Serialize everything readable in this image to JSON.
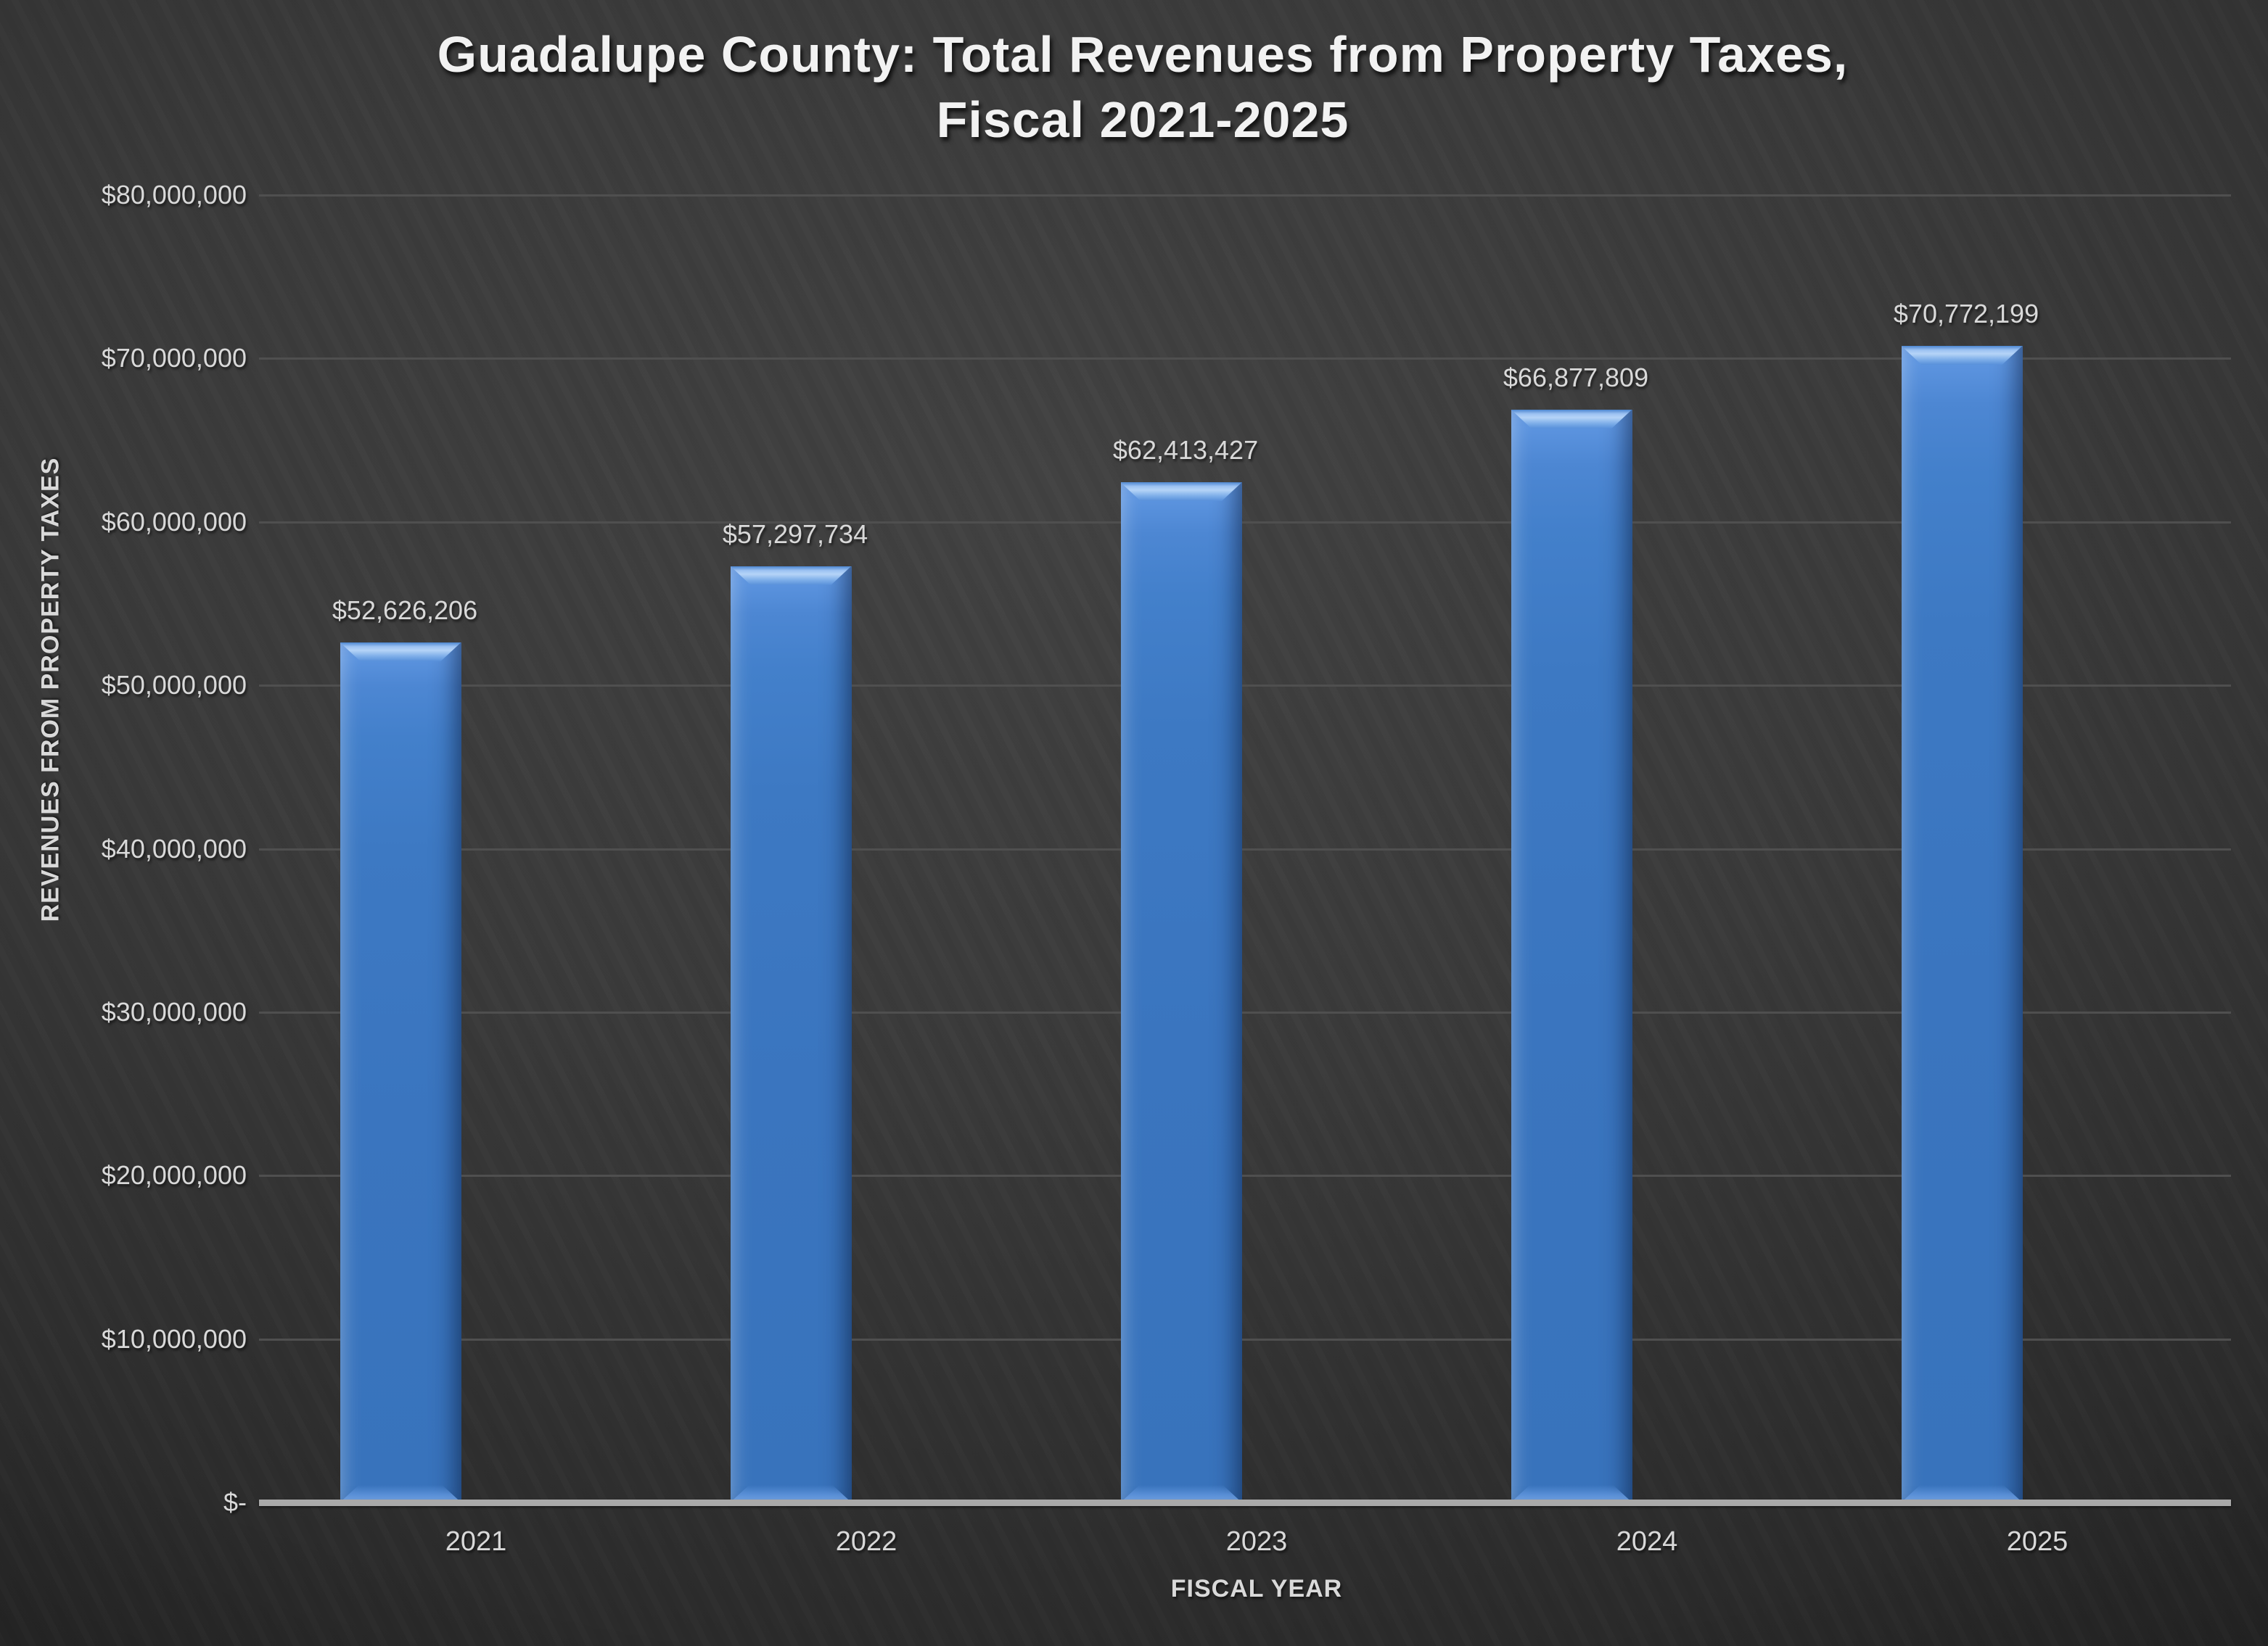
{
  "title": {
    "line1": "Guadalupe County: Total Revenues from Property Taxes,",
    "line2": "Fiscal 2021-2025"
  },
  "chart_data": {
    "type": "bar",
    "title": "Guadalupe County: Total Revenues from Property Taxes, Fiscal 2021-2025",
    "categories": [
      "2021",
      "2022",
      "2023",
      "2024",
      "2025"
    ],
    "values": [
      52626206,
      57297734,
      62413427,
      66877809,
      70772199
    ],
    "data_labels": [
      "$52,626,206",
      "$57,297,734",
      "$62,413,427",
      "$66,877,809",
      "$70,772,199"
    ],
    "xlabel": "FISCAL YEAR",
    "ylabel": "REVENUES FROM PROPERTY TAXES",
    "ylim": [
      0,
      80000000
    ],
    "ytick_interval": 10000000,
    "ytick_labels": [
      "$-",
      "$10,000,000",
      "$20,000,000",
      "$30,000,000",
      "$40,000,000",
      "$50,000,000",
      "$60,000,000",
      "$70,000,000",
      "$80,000,000"
    ],
    "grid": true,
    "legend": false
  },
  "colors": {
    "background": "#333333",
    "bar": "#3b76c0",
    "bar_highlight": "#aacdf6",
    "grid": "#4f4f4f",
    "axis_line": "#a9a9a9",
    "text": "#d9d9d9",
    "title_text": "#f2f2f2"
  }
}
